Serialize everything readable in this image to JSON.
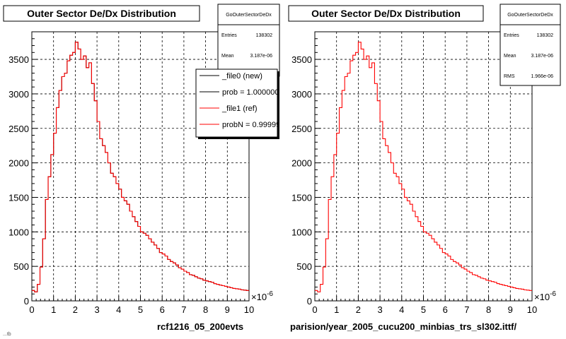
{
  "chart_data": [
    {
      "type": "line",
      "title": "Outer Sector De/Dx Distribution",
      "footer": "rcf1216_05_200evts",
      "exponent_label": "×10",
      "exponent_power": "-6",
      "xlim": [
        0,
        10
      ],
      "ylim": [
        0,
        3900
      ],
      "x_ticks": [
        "0",
        "1",
        "2",
        "3",
        "4",
        "5",
        "6",
        "7",
        "8",
        "9",
        "10"
      ],
      "y_ticks": [
        "0",
        "500",
        "1000",
        "1500",
        "2000",
        "2500",
        "3000",
        "3500"
      ],
      "stats": {
        "title": "GoOuterSectorDeDx",
        "rows": [
          {
            "label": "Entries",
            "value": "138302"
          },
          {
            "label": "Mean",
            "value": "3.187e-06"
          }
        ]
      },
      "legend": [
        {
          "label": "_file0 (new)",
          "color": "#000000"
        },
        {
          "label": "prob = 1.000000",
          "color": "#000000"
        },
        {
          "label": "_file1 (ref)",
          "color": "#ff0000"
        },
        {
          "label": "probN = 0.999990",
          "color": "#ff0000"
        }
      ],
      "series": [
        {
          "name": "_file0 (new)",
          "color": "#000000"
        },
        {
          "name": "_file1 (ref)",
          "color": "#ff0000"
        }
      ]
    },
    {
      "type": "line",
      "title": "Outer Sector De/Dx Distribution",
      "footer": "parision/year_2005_cucu200_minbias_trs_sl302.ittf/",
      "exponent_label": "×10",
      "exponent_power": "-6",
      "xlim": [
        0,
        10
      ],
      "ylim": [
        0,
        3900
      ],
      "x_ticks": [
        "0",
        "1",
        "2",
        "3",
        "4",
        "5",
        "6",
        "7",
        "8",
        "9",
        "10"
      ],
      "y_ticks": [
        "0",
        "500",
        "1000",
        "1500",
        "2000",
        "2500",
        "3000",
        "3500"
      ],
      "stats": {
        "title": "GoOuterSectorDeDx",
        "rows": [
          {
            "label": "Entries",
            "value": "138302"
          },
          {
            "label": "Mean",
            "value": "3.187e-06"
          },
          {
            "label": "RMS",
            "value": "1.966e-06"
          }
        ]
      },
      "legend": [],
      "series": [
        {
          "name": "",
          "color": "#ff0000"
        }
      ]
    }
  ],
  "histogram_y": [
    150,
    130,
    240,
    490,
    900,
    1470,
    1800,
    2120,
    2430,
    2800,
    3050,
    3250,
    3300,
    3480,
    3560,
    3600,
    3750,
    3650,
    3500,
    3550,
    3380,
    3450,
    3150,
    2900,
    2600,
    2350,
    2250,
    2150,
    2000,
    1850,
    1800,
    1700,
    1620,
    1500,
    1450,
    1400,
    1300,
    1220,
    1150,
    1080,
    1000,
    980,
    950,
    900,
    850,
    810,
    760,
    700,
    680,
    650,
    600,
    570,
    550,
    520,
    480,
    460,
    430,
    410,
    380,
    370,
    350,
    330,
    320,
    300,
    290,
    280,
    270,
    250,
    240,
    230,
    220,
    210,
    200,
    190,
    180,
    175,
    170,
    160,
    155,
    150
  ],
  "footer_left": "...tb"
}
